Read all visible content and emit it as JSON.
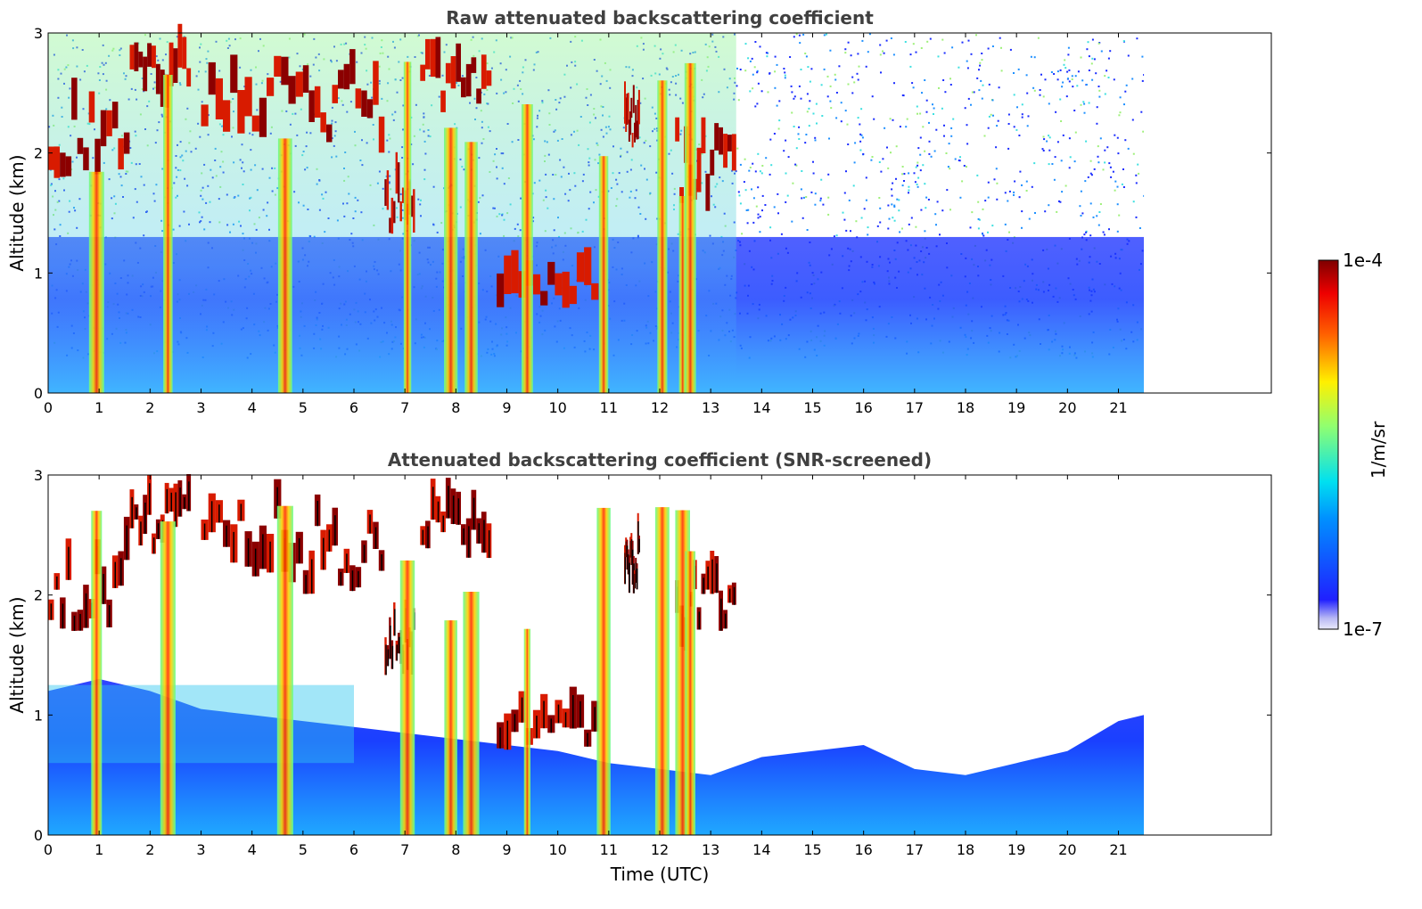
{
  "chart_data": [
    {
      "type": "heatmap",
      "title": "Raw attenuated backscattering coefficient",
      "xlabel": "",
      "ylabel": "Altitude (km)",
      "xlim": [
        0,
        24
      ],
      "ylim": [
        0,
        3
      ],
      "x_ticks": [
        "0",
        "1",
        "2",
        "3",
        "4",
        "5",
        "6",
        "7",
        "8",
        "9",
        "10",
        "11",
        "12",
        "13",
        "14",
        "15",
        "16",
        "17",
        "18",
        "19",
        "20",
        "21"
      ],
      "y_ticks": [
        "0",
        "1",
        "2",
        "3"
      ],
      "data_extent_hours": [
        0,
        21.5
      ],
      "screened": false,
      "colormap": "jet",
      "cloud_layers": [
        {
          "t": [
            0.0,
            1.6
          ],
          "alt_km": [
            1.7,
            2.7
          ]
        },
        {
          "t": [
            1.6,
            2.8
          ],
          "alt_km": [
            2.3,
            3.0
          ]
        },
        {
          "t": [
            3.0,
            5.0
          ],
          "alt_km": [
            2.1,
            3.0
          ]
        },
        {
          "t": [
            5.0,
            6.6
          ],
          "alt_km": [
            2.0,
            3.0
          ]
        },
        {
          "t": [
            6.6,
            7.2
          ],
          "alt_km": [
            1.3,
            2.0
          ]
        },
        {
          "t": [
            7.3,
            8.7
          ],
          "alt_km": [
            2.3,
            3.0
          ]
        },
        {
          "t": [
            8.8,
            10.8
          ],
          "alt_km": [
            0.7,
            1.1
          ]
        },
        {
          "t": [
            11.3,
            11.6
          ],
          "alt_km": [
            2.0,
            2.6
          ]
        },
        {
          "t": [
            12.3,
            13.5
          ],
          "alt_km": [
            1.5,
            2.5
          ]
        }
      ],
      "precip_columns_hours": [
        0.95,
        2.35,
        4.65,
        7.05,
        7.9,
        8.3,
        9.4,
        10.9,
        12.05,
        12.45,
        12.6
      ]
    },
    {
      "type": "heatmap",
      "title": "Attenuated backscattering coefficient (SNR-screened)",
      "xlabel": "Time (UTC)",
      "ylabel": "Altitude (km)",
      "xlim": [
        0,
        24
      ],
      "ylim": [
        0,
        3
      ],
      "x_ticks": [
        "0",
        "1",
        "2",
        "3",
        "4",
        "5",
        "6",
        "7",
        "8",
        "9",
        "10",
        "11",
        "12",
        "13",
        "14",
        "15",
        "16",
        "17",
        "18",
        "19",
        "20",
        "21"
      ],
      "y_ticks": [
        "0",
        "1",
        "2",
        "3"
      ],
      "data_extent_hours": [
        0,
        21.5
      ],
      "screened": true,
      "colormap": "jet",
      "boundary_layer_top_km": [
        [
          0,
          1.2
        ],
        [
          1,
          1.3
        ],
        [
          2,
          1.2
        ],
        [
          3,
          1.05
        ],
        [
          4,
          1.0
        ],
        [
          5,
          0.95
        ],
        [
          6,
          0.9
        ],
        [
          7,
          0.85
        ],
        [
          8,
          0.8
        ],
        [
          9,
          0.75
        ],
        [
          10,
          0.7
        ],
        [
          11,
          0.6
        ],
        [
          12,
          0.55
        ],
        [
          13,
          0.5
        ],
        [
          14,
          0.65
        ],
        [
          15,
          0.7
        ],
        [
          16,
          0.75
        ],
        [
          17,
          0.55
        ],
        [
          18,
          0.5
        ],
        [
          19,
          0.6
        ],
        [
          20,
          0.7
        ],
        [
          21,
          0.95
        ],
        [
          21.5,
          1.0
        ]
      ]
    }
  ],
  "colorbar": {
    "top_label": "1e-4",
    "bottom_label": "1e-7",
    "units": "1/m/sr",
    "log_range": [
      -7,
      -4
    ]
  }
}
